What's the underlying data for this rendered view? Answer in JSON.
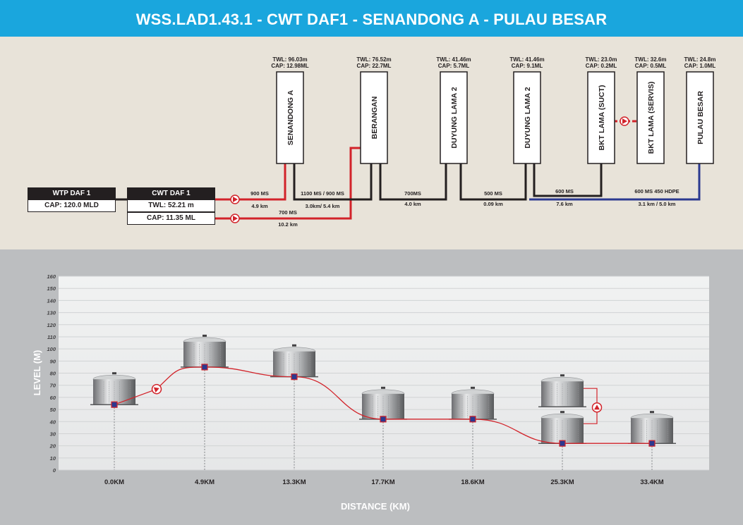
{
  "header": {
    "title": "WSS.LAD1.43.1 - CWT DAF1 - SENANDONG A - PULAU BESAR"
  },
  "colors": {
    "header_bg": "#1aa6dd",
    "schematic_bg": "#e8e3d9",
    "profile_bg": "#bcbec0",
    "red_main": "#d2232a",
    "blue_hdpe": "#2b3990",
    "node_marker": "#2b3990"
  },
  "source": {
    "wtp": {
      "name": "WTP DAF 1",
      "cap": "CAP: 120.0 MLD"
    },
    "cwt": {
      "name": "CWT DAF 1",
      "twl": "TWL: 52.21 m",
      "cap": "CAP: 11.35 ML"
    }
  },
  "reservoirs": [
    {
      "name": "SENANDONG A",
      "twl": "TWL: 96.03m",
      "cap": "CAP: 12.98ML"
    },
    {
      "name": "BERANGAN",
      "twl": "TWL: 76.52m",
      "cap": "CAP: 22.7ML"
    },
    {
      "name": "DUYUNG LAMA 2",
      "twl": "TWL: 41.46m",
      "cap": "CAP: 5.7ML"
    },
    {
      "name": "DUYUNG LAMA 2",
      "twl": "TWL: 41.46m",
      "cap": "CAP: 9.1ML"
    },
    {
      "name": "BKT LAMA (SUCT)",
      "twl": "TWL: 23.0m",
      "cap": "CAP: 0.2ML"
    },
    {
      "name": "BKT LAMA (SERVIS)",
      "twl": "TWL: 32.6m",
      "cap": "CAP: 0.5ML"
    },
    {
      "name": "PULAU BESAR",
      "twl": "TWL: 24.8m",
      "cap": "CAP: 1.0ML"
    }
  ],
  "pipes": [
    {
      "size": "900 MS",
      "length": "4.9 km"
    },
    {
      "size": "700 MS",
      "length": "10.2 km"
    },
    {
      "size": "1100 MS / 900 MS",
      "length": "3.0km/ 5.4 km"
    },
    {
      "size": "700MS",
      "length": "4.0 km"
    },
    {
      "size": "500 MS",
      "length": "0.09 km"
    },
    {
      "size": "600 MS",
      "length": "7.6 km"
    },
    {
      "size": "600 MS 450 HDPE",
      "length": "3.1 km / 5.0 km"
    }
  ],
  "profile": {
    "y_axis_label": "LEVEL (M)",
    "x_axis_label": "DISTANCE (KM)",
    "y_ticks": [
      "0",
      "10",
      "20",
      "30",
      "40",
      "50",
      "60",
      "70",
      "80",
      "90",
      "100",
      "110",
      "120",
      "130",
      "140",
      "150",
      "160"
    ],
    "ylim": [
      0,
      160
    ],
    "grid": "horizontal",
    "stations": [
      {
        "label": "0.0KM",
        "level": 54
      },
      {
        "label": "4.9KM",
        "level": 85
      },
      {
        "label": "13.3KM",
        "level": 77
      },
      {
        "label": "17.7KM",
        "level": 42
      },
      {
        "label": "18.6KM",
        "level": 42
      },
      {
        "label": "25.3KM",
        "level": 22
      },
      {
        "label": "33.4KM",
        "level": 22
      }
    ]
  }
}
